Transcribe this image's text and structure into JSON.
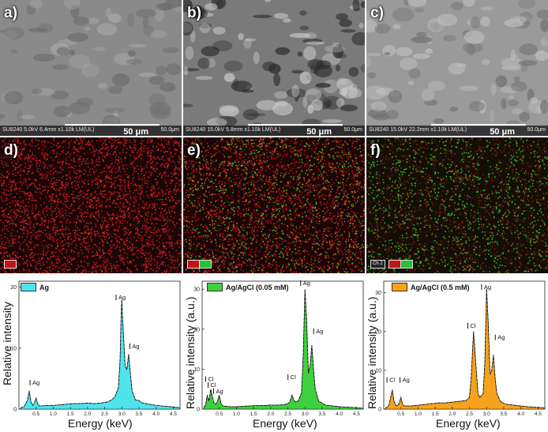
{
  "panels": {
    "a": {
      "label": "a)",
      "meta": "SU8240 5.0kV 6.4mm x1.10k LM(UL)",
      "scale": "50 μm",
      "scale_small": "50.0μm"
    },
    "b": {
      "label": "b)",
      "meta": "SU8240 15.0kV 5.8mm x1.10k LM(UL)",
      "scale": "50 μm",
      "scale_small": "50.0μm"
    },
    "c": {
      "label": "c)",
      "meta": "SU8240 15.0kV 22.2mm x1.10k LM(UL)",
      "scale": "50 μm",
      "scale_small": "50.0μm"
    },
    "d": {
      "label": "d)",
      "channels": [
        ""
      ]
    },
    "e": {
      "label": "e)",
      "channels": [
        "",
        ""
      ]
    },
    "f": {
      "label": "f)",
      "channels": [
        "Ch 2",
        "",
        ""
      ]
    }
  },
  "colors": {
    "ag_fill": "#4fe3ee",
    "agcl005_fill": "#3dd13d",
    "agcl05_fill": "#f7a21b",
    "ag_map": "#c0151a",
    "cl_map": "#26c23a"
  },
  "chart_data": [
    {
      "type": "area",
      "ylabel": "Relative intensity",
      "xlabel": "Energy (keV)",
      "legend": "Ag",
      "xlim": [
        0,
        4.7
      ],
      "ylim": [
        0,
        21
      ],
      "yticks": [
        0,
        10,
        20
      ],
      "xticks": [
        "0.5",
        "1.0",
        "1.5",
        "2.0",
        "2.5",
        "3.0",
        "3.5",
        "4.0",
        "4.5"
      ],
      "x": [
        0.05,
        0.15,
        0.25,
        0.3,
        0.35,
        0.4,
        0.45,
        0.5,
        0.55,
        0.6,
        0.8,
        1.0,
        1.2,
        1.4,
        1.6,
        1.8,
        2.0,
        2.2,
        2.4,
        2.6,
        2.7,
        2.8,
        2.9,
        2.95,
        2.98,
        3.0,
        3.05,
        3.1,
        3.15,
        3.2,
        3.25,
        3.3,
        3.4,
        3.5,
        3.6,
        3.8,
        4.0,
        4.2,
        4.4,
        4.6,
        4.7
      ],
      "y": [
        0.2,
        0.4,
        1.5,
        3.0,
        1.2,
        0.6,
        1.0,
        1.8,
        0.8,
        0.5,
        0.6,
        0.6,
        0.7,
        0.8,
        0.9,
        0.9,
        1.0,
        0.9,
        1.0,
        1.2,
        1.5,
        2.0,
        3.5,
        8.0,
        15.0,
        18.0,
        12.0,
        7.0,
        6.5,
        9.0,
        6.0,
        3.0,
        1.5,
        1.4,
        1.0,
        0.8,
        0.6,
        0.5,
        0.4,
        0.3,
        0.2
      ],
      "annotations": [
        {
          "text": "Ag",
          "x": 0.37,
          "y": 4
        },
        {
          "text": "Ag",
          "x": 2.88,
          "y": 18
        },
        {
          "text": "Ag",
          "x": 3.28,
          "y": 10
        }
      ]
    },
    {
      "type": "area",
      "ylabel": "Relative intensity (a.u.)",
      "xlabel": "Energy (keV)",
      "legend": "Ag/AgCl (0.05 mM)",
      "xlim": [
        0,
        4.7
      ],
      "ylim": [
        0,
        32
      ],
      "yticks": [
        0,
        10,
        20,
        30
      ],
      "xticks": [
        "0.5",
        "1.0",
        "1.5",
        "2.0",
        "2.5",
        "3.0",
        "3.5",
        "4.0",
        "4.5"
      ],
      "x": [
        0.05,
        0.1,
        0.15,
        0.2,
        0.25,
        0.3,
        0.35,
        0.4,
        0.45,
        0.5,
        0.55,
        0.6,
        0.8,
        1.0,
        1.2,
        1.4,
        1.6,
        1.8,
        2.0,
        2.2,
        2.4,
        2.55,
        2.62,
        2.7,
        2.8,
        2.9,
        2.95,
        3.0,
        3.05,
        3.1,
        3.15,
        3.2,
        3.25,
        3.3,
        3.4,
        3.5,
        3.6,
        3.8,
        4.0,
        4.2,
        4.4,
        4.6,
        4.7
      ],
      "y": [
        0.5,
        1.0,
        3.5,
        2.0,
        5.0,
        3.0,
        1.5,
        1.2,
        2.0,
        3.5,
        1.5,
        0.8,
        0.6,
        0.6,
        0.7,
        0.8,
        0.9,
        0.9,
        1.0,
        1.0,
        1.1,
        1.6,
        3.5,
        1.8,
        2.0,
        4.0,
        14.0,
        30.0,
        22.0,
        9.0,
        11.0,
        16.0,
        10.0,
        5.0,
        2.0,
        1.5,
        1.0,
        0.8,
        0.6,
        0.5,
        0.4,
        0.3,
        0.2
      ],
      "annotations": [
        {
          "text": "Cl",
          "x": 0.15,
          "y": 7
        },
        {
          "text": "Cl",
          "x": 0.22,
          "y": 5.5
        },
        {
          "text": "Ag",
          "x": 0.38,
          "y": 4
        },
        {
          "text": "Cl",
          "x": 2.55,
          "y": 7.5
        },
        {
          "text": "Ag",
          "x": 2.92,
          "y": 31
        },
        {
          "text": "Ag",
          "x": 3.3,
          "y": 19
        }
      ]
    },
    {
      "type": "area",
      "ylabel": "Relative intensity (a.u.)",
      "xlabel": "Energy (keV)",
      "legend": "Ag/AgCl (0.5 mM)",
      "xlim": [
        0,
        4.7
      ],
      "ylim": [
        0,
        33
      ],
      "yticks": [
        0,
        10,
        20,
        30
      ],
      "xticks": [
        "0.5",
        "1.0",
        "1.5",
        "2.0",
        "2.5",
        "3.0",
        "3.5",
        "4.0",
        "4.5"
      ],
      "x": [
        0.05,
        0.1,
        0.15,
        0.2,
        0.25,
        0.3,
        0.35,
        0.4,
        0.45,
        0.5,
        0.55,
        0.6,
        0.8,
        1.0,
        1.2,
        1.4,
        1.6,
        1.8,
        2.0,
        2.2,
        2.4,
        2.5,
        2.55,
        2.62,
        2.7,
        2.75,
        2.8,
        2.9,
        2.95,
        3.0,
        3.05,
        3.1,
        3.15,
        3.2,
        3.25,
        3.3,
        3.4,
        3.5,
        3.6,
        3.8,
        4.0,
        4.2,
        4.4,
        4.6,
        4.7
      ],
      "y": [
        0.3,
        0.5,
        1.0,
        3.0,
        5.0,
        2.0,
        1.0,
        0.8,
        1.5,
        3.0,
        1.2,
        0.8,
        0.8,
        1.0,
        1.2,
        1.4,
        1.6,
        1.6,
        1.8,
        2.0,
        2.2,
        3.0,
        8.0,
        20.0,
        10.0,
        4.0,
        3.0,
        4.0,
        12.0,
        31.0,
        22.0,
        9.0,
        10.0,
        14.0,
        8.0,
        4.0,
        2.0,
        1.5,
        1.2,
        1.0,
        0.8,
        0.6,
        0.5,
        0.4,
        0.3
      ],
      "annotations": [
        {
          "text": "Cl",
          "x": 0.14,
          "y": 7
        },
        {
          "text": "Ag",
          "x": 0.52,
          "y": 7
        },
        {
          "text": "Cl",
          "x": 2.5,
          "y": 21
        },
        {
          "text": "Ag",
          "x": 2.9,
          "y": 31
        },
        {
          "text": "Ag",
          "x": 3.3,
          "y": 18
        }
      ]
    }
  ]
}
